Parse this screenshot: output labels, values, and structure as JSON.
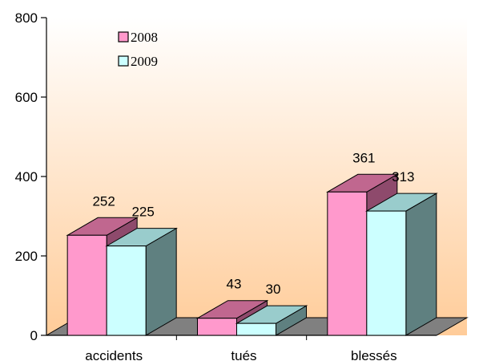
{
  "chart_data": {
    "type": "bar",
    "categories": [
      "accidents",
      "tués",
      "blessés"
    ],
    "series": [
      {
        "name": "2008",
        "values": [
          252,
          43,
          361
        ]
      },
      {
        "name": "2009",
        "values": [
          225,
          30,
          313
        ]
      }
    ],
    "title": "",
    "xlabel": "",
    "ylabel": "",
    "ylim": [
      0,
      800
    ],
    "yticks": [
      0,
      200,
      400,
      600,
      800
    ],
    "grid": false,
    "legend_position": "top-left",
    "style": "3d-clustered",
    "colors": {
      "series_2008_front": "#ff99cc",
      "series_2008_top": "#c0678f",
      "series_2008_side": "#8e4a6c",
      "series_2009_front": "#ccffff",
      "series_2009_top": "#99cccc",
      "series_2009_side": "#5f8080",
      "floor": "#808080",
      "background_top": "#ffffff",
      "background_bottom": "#ffcc99"
    }
  }
}
